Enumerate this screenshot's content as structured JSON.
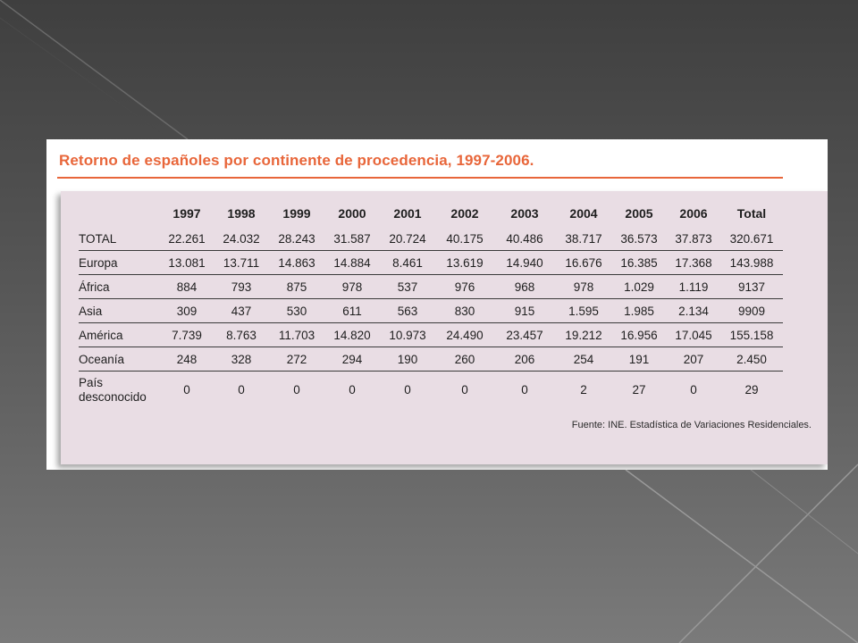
{
  "slide": {
    "title": "Retorno de españoles por continente de procedencia, 1997-2006.",
    "accent_color": "#e8663a",
    "panel_color": "#e9dde4"
  },
  "table": {
    "corner_header": "",
    "columns": [
      "1997",
      "1998",
      "1999",
      "2000",
      "2001",
      "2002",
      "2003",
      "2004",
      "2005",
      "2006",
      "Total"
    ],
    "rows": [
      {
        "label": "TOTAL",
        "cells": [
          "22.261",
          "24.032",
          "28.243",
          "31.587",
          "20.724",
          "40.175",
          "40.486",
          "38.717",
          "36.573",
          "37.873",
          "320.671"
        ]
      },
      {
        "label": "Europa",
        "cells": [
          "13.081",
          "13.711",
          "14.863",
          "14.884",
          "8.461",
          "13.619",
          "14.940",
          "16.676",
          "16.385",
          "17.368",
          "143.988"
        ]
      },
      {
        "label": "África",
        "cells": [
          "884",
          "793",
          "875",
          "978",
          "537",
          "976",
          "968",
          "978",
          "1.029",
          "1.119",
          "9137"
        ]
      },
      {
        "label": "Asia",
        "cells": [
          "309",
          "437",
          "530",
          "611",
          "563",
          "830",
          "915",
          "1.595",
          "1.985",
          "2.134",
          "9909"
        ]
      },
      {
        "label": "América",
        "cells": [
          "7.739",
          "8.763",
          "11.703",
          "14.820",
          "10.973",
          "24.490",
          "23.457",
          "19.212",
          "16.956",
          "17.045",
          "155.158"
        ]
      },
      {
        "label": "Oceanía",
        "cells": [
          "248",
          "328",
          "272",
          "294",
          "190",
          "260",
          "206",
          "254",
          "191",
          "207",
          "2.450"
        ]
      }
    ],
    "last_row": {
      "label_line1": "País",
      "label_line2": "desconocido",
      "cells": [
        "0",
        "0",
        "0",
        "0",
        "0",
        "0",
        "0",
        "2",
        "27",
        "0",
        "29"
      ]
    }
  },
  "source": "Fuente: INE. Estadística de Variaciones Residenciales."
}
